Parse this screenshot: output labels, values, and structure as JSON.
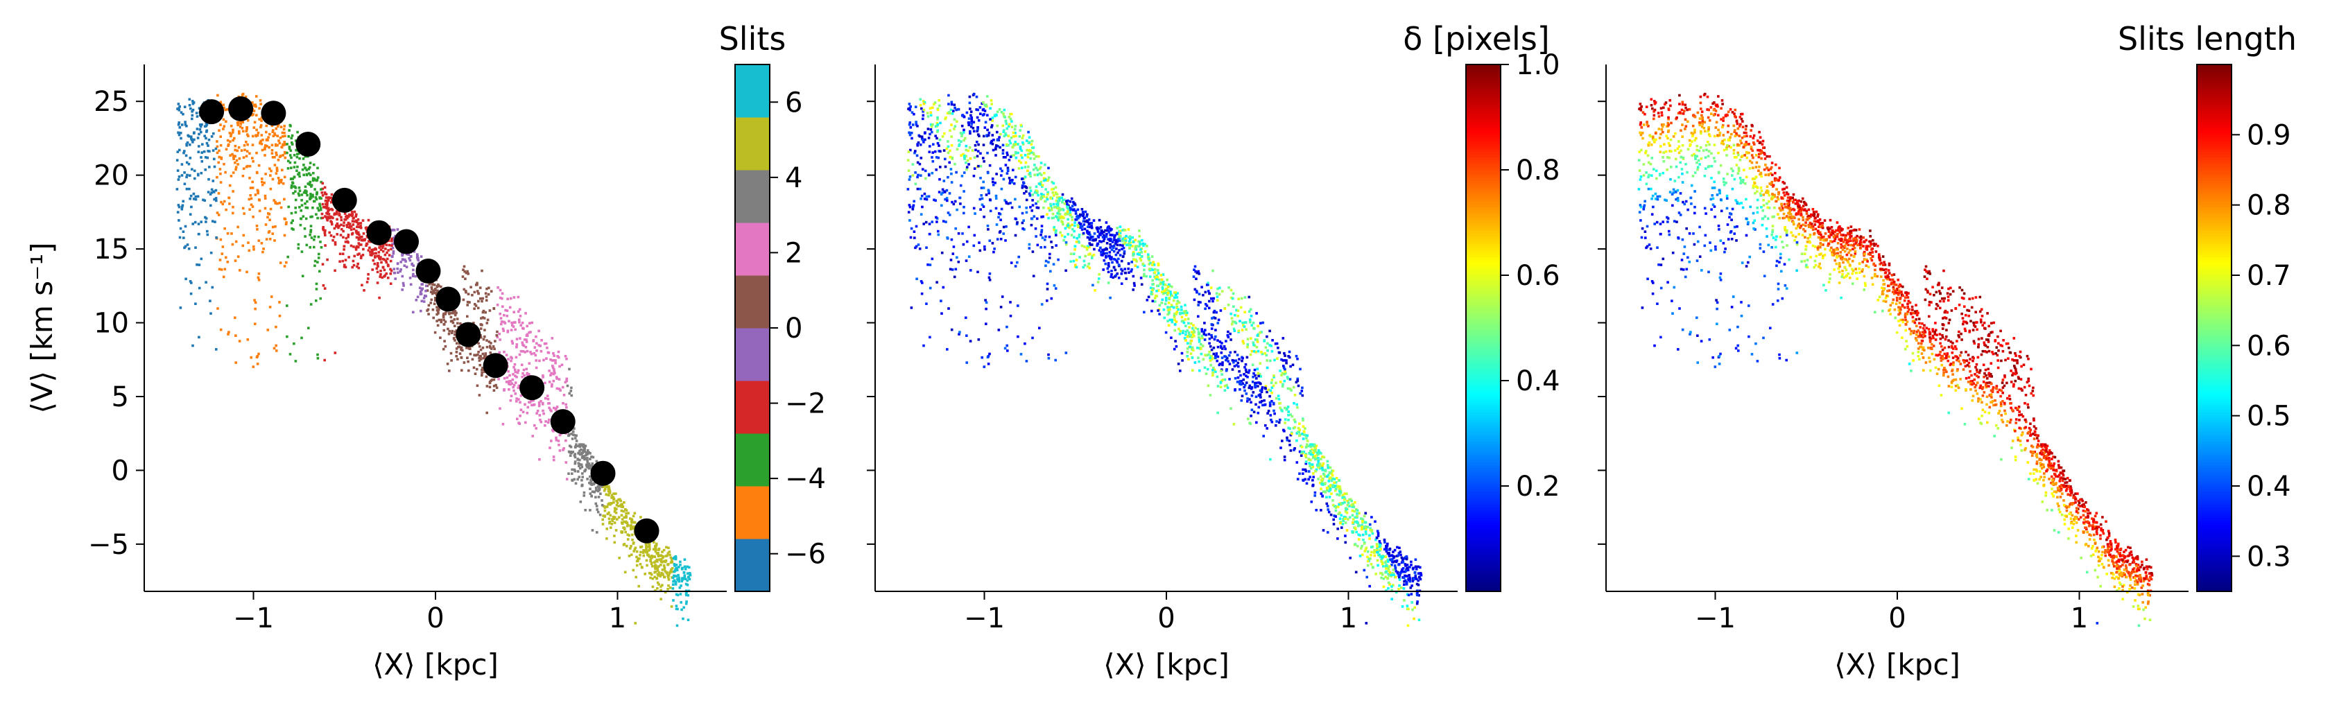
{
  "chart_data": [
    {
      "type": "scatter",
      "xlabel": "⟨X⟩ [kpc]",
      "ylabel": "⟨V⟩ [km s⁻¹]",
      "xlim": [
        -1.6,
        1.6
      ],
      "ylim": [
        -8.2,
        27.5
      ],
      "x_ticks": [
        -1,
        0,
        1
      ],
      "x_tick_labels": [
        "−1",
        "0",
        "1"
      ],
      "y_ticks": [
        -5,
        0,
        5,
        10,
        15,
        20,
        25
      ],
      "y_tick_labels": [
        "−5",
        "0",
        "5",
        "10",
        "15",
        "20",
        "25"
      ],
      "grid": false,
      "colorbar": {
        "label": "Slits",
        "range": [
          -7,
          7
        ],
        "ticks": [
          -6,
          -4,
          -2,
          0,
          2,
          4,
          6
        ],
        "tick_labels": [
          "−6",
          "−4",
          "−2",
          "0",
          "2",
          "4",
          "6"
        ],
        "colors": [
          "#1f77b4",
          "#ff7f0e",
          "#2ca02c",
          "#d62728",
          "#9467bd",
          "#8c564b",
          "#e377c2",
          "#7f7f7f",
          "#bcbd22",
          "#17becf"
        ]
      },
      "slit_centers": {
        "x": [
          -1.23,
          -1.07,
          -0.89,
          -0.7,
          -0.5,
          -0.31,
          -0.16,
          -0.04,
          0.07,
          0.18,
          0.33,
          0.53,
          0.7,
          0.92,
          1.16
        ],
        "y": [
          24.3,
          24.5,
          24.2,
          22.1,
          18.3,
          16.1,
          15.5,
          13.5,
          11.6,
          9.2,
          7.1,
          5.6,
          3.3,
          -0.2,
          -4.1
        ]
      }
    },
    {
      "type": "scatter",
      "xlabel": "⟨X⟩ [kpc]",
      "xlim": [
        -1.6,
        1.6
      ],
      "ylim": [
        -8.2,
        27.5
      ],
      "x_ticks": [
        -1,
        0,
        1
      ],
      "x_tick_labels": [
        "−1",
        "0",
        "1"
      ],
      "y_ticks": [
        -5,
        0,
        5,
        10,
        15,
        20,
        25
      ],
      "grid": false,
      "colorbar": {
        "label": "δ [pixels]",
        "range": [
          0,
          1.0
        ],
        "ticks": [
          0.2,
          0.4,
          0.6,
          0.8,
          1.0
        ],
        "tick_labels": [
          "0.2",
          "0.4",
          "0.6",
          "0.8",
          "1.0"
        ],
        "colormap": "jet"
      }
    },
    {
      "type": "scatter",
      "xlabel": "⟨X⟩ [kpc]",
      "xlim": [
        -1.6,
        1.6
      ],
      "ylim": [
        -8.2,
        27.5
      ],
      "x_ticks": [
        -1,
        0,
        1
      ],
      "x_tick_labels": [
        "−1",
        "0",
        "1"
      ],
      "y_ticks": [
        -5,
        0,
        5,
        10,
        15,
        20,
        25
      ],
      "grid": false,
      "colorbar": {
        "label": "Slits length",
        "range": [
          0.25,
          1.0
        ],
        "ticks": [
          0.3,
          0.4,
          0.5,
          0.6,
          0.7,
          0.8,
          0.9
        ],
        "tick_labels": [
          "0.3",
          "0.4",
          "0.5",
          "0.6",
          "0.7",
          "0.8",
          "0.9"
        ],
        "colormap": "jet"
      }
    }
  ]
}
